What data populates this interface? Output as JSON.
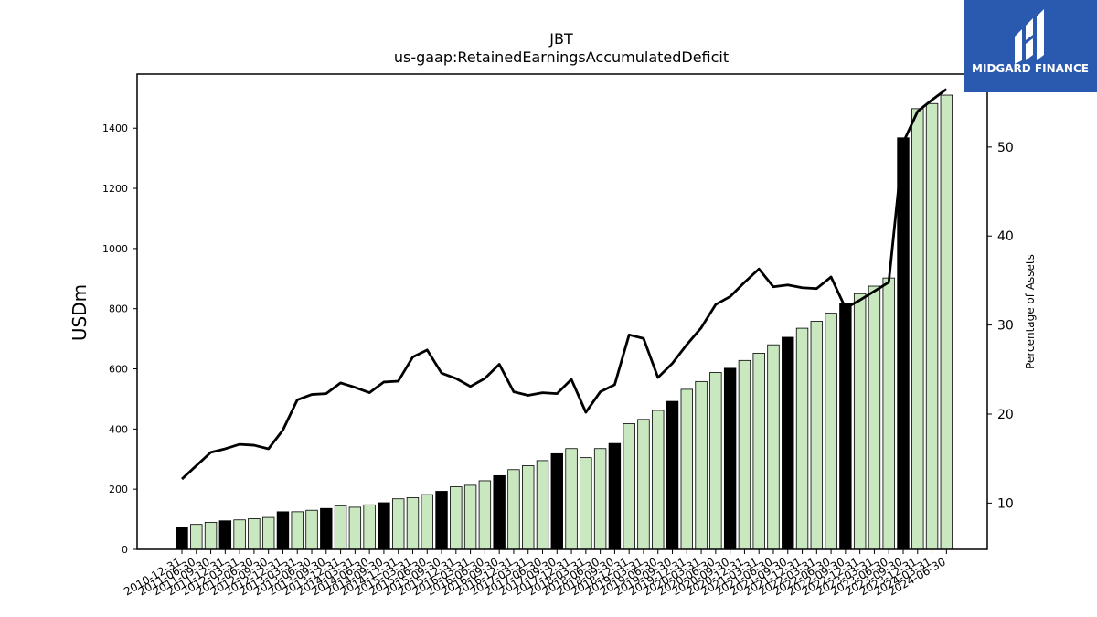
{
  "chart_data": {
    "type": "bar",
    "title": "JBT",
    "subtitle": "us-gaap:RetainedEarningsAccumulatedDeficit",
    "ylabel": "USDm",
    "y2label": "Percentage of Assets",
    "ylim": [
      0,
      1580
    ],
    "y2lim": [
      4.8,
      58.2
    ],
    "yticks": [
      0,
      200,
      400,
      600,
      800,
      1000,
      1200,
      1400
    ],
    "y2ticks": [
      10,
      20,
      30,
      40,
      50
    ],
    "grid": false,
    "bar_colors": {
      "annual": "#000000",
      "quarter": "#c9e8c0"
    },
    "line_color": "#000000",
    "categories": [
      "2010-12-31",
      "2011-06-30",
      "2011-09-30",
      "2011-12-31",
      "2012-03-31",
      "2012-06-30",
      "2012-09-30",
      "2012-12-31",
      "2013-03-31",
      "2013-06-30",
      "2013-09-30",
      "2013-12-31",
      "2014-03-31",
      "2014-06-30",
      "2014-09-30",
      "2014-12-31",
      "2015-03-31",
      "2015-06-30",
      "2015-09-30",
      "2015-12-31",
      "2016-03-31",
      "2016-06-30",
      "2016-09-30",
      "2016-12-31",
      "2017-03-31",
      "2017-06-30",
      "2017-09-30",
      "2017-12-31",
      "2018-03-31",
      "2018-06-30",
      "2018-09-30",
      "2018-12-31",
      "2019-03-31",
      "2019-06-30",
      "2019-09-30",
      "2019-12-31",
      "2020-03-31",
      "2020-06-30",
      "2020-09-30",
      "2020-12-31",
      "2021-03-31",
      "2021-06-30",
      "2021-09-30",
      "2021-12-31",
      "2022-03-31",
      "2022-06-30",
      "2022-09-30",
      "2022-12-31",
      "2023-03-31",
      "2023-06-30",
      "2023-09-30",
      "2023-12-31",
      "2024-03-31",
      "2024-06-30"
    ],
    "xtick_labels": [
      "2010-12-31",
      "2011-06-30",
      "2011-09-30",
      "2011-12-31",
      "2012-03-31",
      "2012-06-30",
      "2012-09-30",
      "2012-12-31",
      "2013-03-31",
      "2013-06-30",
      "2013-09-30",
      "2013-12-31",
      "2014-03-31",
      "2014-06-30",
      "2014-09-30",
      "2014-12-31",
      "2015-03-31",
      "2015-06-30",
      "2015-09-30",
      "2015-12-31",
      "2016-03-31",
      "2016-06-30",
      "2016-09-30",
      "2016-12-31",
      "2017-03-31",
      "2017-06-30",
      "2017-09-30",
      "2017-12-31",
      "2018-03-31",
      "2018-06-30",
      "2018-09-30",
      "2018-12-31",
      "2019-03-31",
      "2019-06-30",
      "2019-09-30",
      "2019-12-31",
      "2020-03-31",
      "2020-06-30",
      "2020-09-30",
      "2020-12-31",
      "2021-03-31",
      "2021-06-30",
      "2021-09-30",
      "2021-12-31",
      "2022-03-31",
      "2022-06-30",
      "2022-09-30",
      "2022-12-31",
      "2023-03-31",
      "2023-06-30",
      "2023-09-30",
      "2023-12-31",
      "2024-03-31",
      "2024-06-30"
    ],
    "annual": [
      true,
      false,
      false,
      true,
      false,
      false,
      false,
      true,
      false,
      false,
      true,
      false,
      false,
      false,
      true,
      false,
      false,
      false,
      true,
      false,
      false,
      false,
      true,
      false,
      false,
      false,
      true,
      false,
      false,
      false,
      true,
      false,
      false,
      false,
      true,
      false,
      false,
      false,
      true,
      false,
      false,
      false,
      true,
      false,
      false,
      false,
      true,
      false,
      false,
      false,
      true,
      false,
      false,
      false
    ],
    "values": [
      72,
      83,
      90,
      95,
      98,
      102,
      106,
      125,
      125,
      130,
      136,
      145,
      140,
      148,
      155,
      168,
      172,
      182,
      193,
      208,
      213,
      228,
      245,
      265,
      278,
      295,
      318,
      335,
      305,
      335,
      352,
      418,
      432,
      462,
      492,
      532,
      558,
      588,
      602,
      628,
      652,
      680,
      705,
      735,
      758,
      785,
      818,
      850,
      875,
      902,
      1368,
      1465,
      1482,
      1510
    ],
    "pct_of_assets": [
      12.7,
      14.2,
      15.7,
      16.1,
      16.6,
      16.5,
      16.1,
      18.2,
      21.6,
      22.2,
      22.3,
      23.5,
      23.0,
      22.4,
      23.6,
      23.7,
      26.4,
      27.2,
      24.6,
      24.0,
      23.1,
      24.0,
      25.6,
      22.5,
      22.1,
      22.4,
      22.3,
      23.9,
      20.2,
      22.5,
      23.3,
      28.9,
      28.5,
      24.1,
      25.7,
      27.8,
      29.7,
      32.3,
      33.2,
      34.8,
      36.3,
      34.3,
      34.5,
      34.2,
      34.1,
      35.4,
      31.9,
      32.8,
      33.8,
      34.8,
      50.5,
      54.0,
      55.3,
      56.5
    ]
  },
  "logo": {
    "text": "MIDGARD FINANCE",
    "icon": "midgard-logo-icon"
  }
}
